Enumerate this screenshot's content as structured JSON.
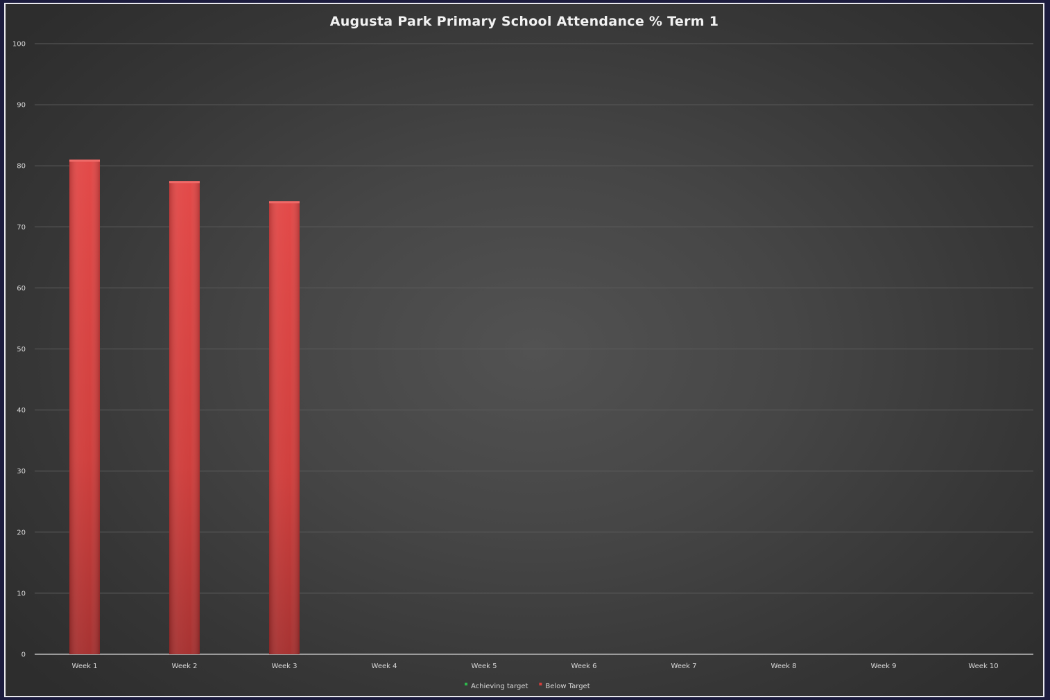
{
  "chart_data": {
    "type": "bar",
    "title": "Augusta Park Primary School Attendance % Term 1",
    "xlabel": "",
    "ylabel": "",
    "categories": [
      "Week 1",
      "Week 2",
      "Week 3",
      "Week 4",
      "Week 5",
      "Week 6",
      "Week 7",
      "Week 8",
      "Week 9",
      "Week 10"
    ],
    "series": [
      {
        "name": "Achieving target",
        "color": "#2db84b",
        "values": [
          null,
          null,
          null,
          null,
          null,
          null,
          null,
          null,
          null,
          null
        ]
      },
      {
        "name": "Below Target",
        "color": "#d63d3b",
        "values": [
          81,
          77.5,
          74.2,
          null,
          null,
          null,
          null,
          null,
          null,
          null
        ]
      }
    ],
    "ylim": [
      0,
      100
    ],
    "yticks": [
      0,
      10,
      20,
      30,
      40,
      50,
      60,
      70,
      80,
      90,
      100
    ],
    "grid": true,
    "legend_position": "bottom"
  }
}
